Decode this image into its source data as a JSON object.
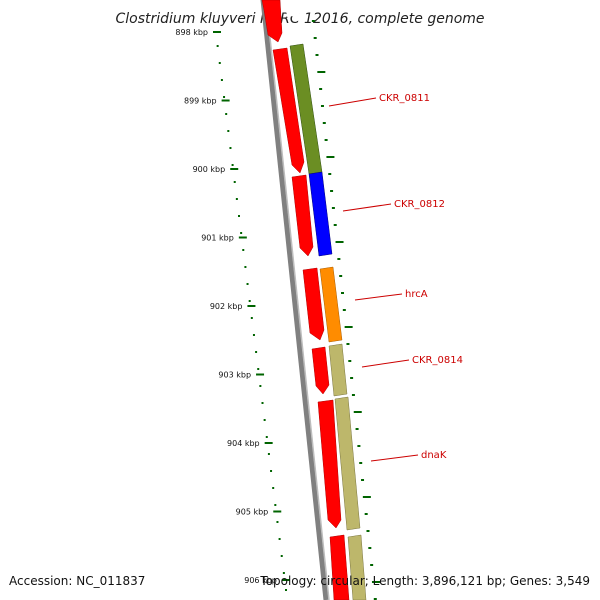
{
  "title": "Clostridium kluyveri NBRC 12016, complete genome",
  "accession_text": "Accession: NC_011837",
  "summary_text": "Topology: circular; Length: 3,896,121 bp; Genes: 3,549",
  "tick_labels": [
    "898 kbp",
    "899 kbp",
    "900 kbp",
    "901 kbp",
    "902 kbp",
    "903 kbp",
    "904 kbp",
    "905 kbp",
    "906 kbp"
  ],
  "features": [
    {
      "gene": "CKR_0811",
      "outer_color": "#6b8e23",
      "label": "CKR_0811"
    },
    {
      "gene": "CKR_0812",
      "outer_color": "#0000ff",
      "label": "CKR_0812"
    },
    {
      "gene": "hrcA",
      "outer_color": "#ff8c00",
      "label": "hrcA"
    },
    {
      "gene": "CKR_0814",
      "outer_color": "#bdb76b",
      "label": "CKR_0814"
    },
    {
      "gene": "dnaK",
      "outer_color": "#bdb76b",
      "label": "dnaK"
    }
  ],
  "colors": {
    "cds_strand": "#ff0000",
    "backbone": "#808080",
    "ruler_ticks": "#006400",
    "gene_labels": "#cc0000"
  }
}
